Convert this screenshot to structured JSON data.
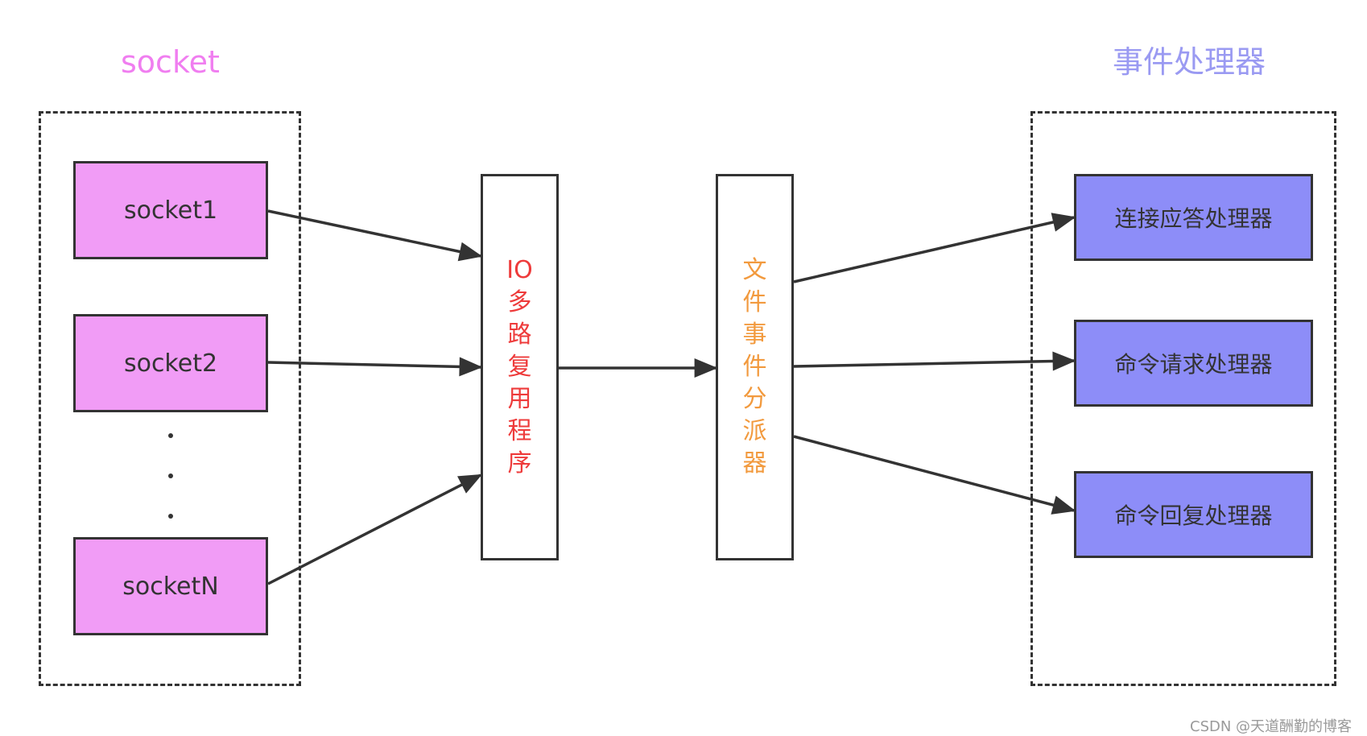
{
  "groups": {
    "socket_title": "socket",
    "handler_title": "事件处理器"
  },
  "sockets": [
    "socket1",
    "socket2",
    "socketN"
  ],
  "io_multiplexer": "IO多路复用程序",
  "file_event_dispatcher": "文件事件分派器",
  "handlers": [
    "连接应答处理器",
    "命令请求处理器",
    "命令回复处理器"
  ],
  "watermark": "CSDN @天道酬勤的博客",
  "colors": {
    "socket_fill": "#F19CF6",
    "socket_title": "#F07EF0",
    "handler_fill": "#8D8DF8",
    "handler_title": "#9A9AF2",
    "io_text": "#EE3B3B",
    "dispatcher_text": "#F29A3E",
    "line": "#333333"
  }
}
